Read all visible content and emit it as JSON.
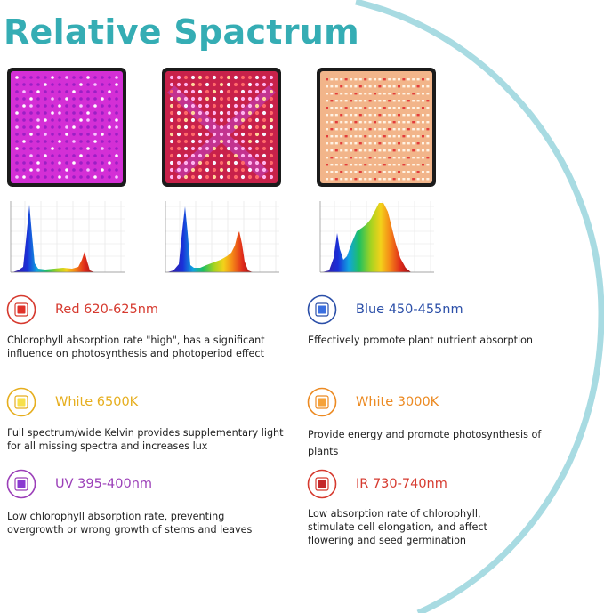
{
  "title": "Relative Spactrum",
  "colors": {
    "title": "#35adb4",
    "arc": "#a8dbe2",
    "red": "#d63a2f",
    "blue": "#2b4fa8",
    "white_6500k": "#e6ae1e",
    "white_3000k": "#ec8a22",
    "uv": "#9b3fb8",
    "ir": "#d63a2f"
  },
  "panels": [
    {
      "name": "purple-panel"
    },
    {
      "name": "full-spectrum-panel"
    },
    {
      "name": "warm-white-panel"
    }
  ],
  "features": [
    {
      "key": "red",
      "title": "Red 620-625nm",
      "desc": "Chlorophyll absorption rate \"high\", has a significant influence on photosynthesis and photoperiod effect",
      "icon": "red-led-icon"
    },
    {
      "key": "blue",
      "title": "Blue 450-455nm",
      "desc": "Effectively promote plant nutrient absorption",
      "icon": "blue-led-icon"
    },
    {
      "key": "white6500",
      "title": "White 6500K",
      "desc": "Full spectrum/wide Kelvin provides supplementary light for all missing spectra and increases lux",
      "icon": "white-6500k-led-icon"
    },
    {
      "key": "white3000",
      "title": "White 3000K",
      "desc": "Provide energy and promote photosynthesis of plants",
      "icon": "white-3000k-led-icon"
    },
    {
      "key": "uv",
      "title": "UV 395-400nm",
      "desc": "Low chlorophyll absorption rate, preventing overgrowth or wrong growth of stems and leaves",
      "icon": "uv-led-icon"
    },
    {
      "key": "ir",
      "title": "IR 730-740nm",
      "desc": "Low absorption rate of chlorophyll, stimulate cell elongation, and affect flowering and seed germination",
      "icon": "ir-led-icon"
    }
  ]
}
